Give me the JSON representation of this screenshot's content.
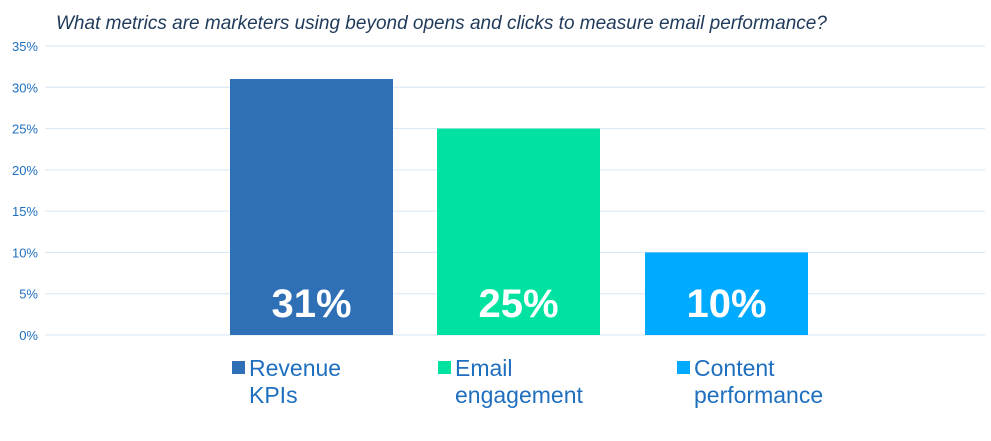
{
  "chart_data": {
    "type": "bar",
    "title": "What metrics are marketers using beyond opens and clicks to measure email performance?",
    "xlabel": "",
    "ylabel": "",
    "categories": [
      "Revenue KPIs",
      "Email engagement",
      "Content performance"
    ],
    "category_lines": [
      [
        "Revenue",
        "KPIs"
      ],
      [
        "Email",
        "engagement"
      ],
      [
        "Content",
        "performance"
      ]
    ],
    "values": [
      31,
      25,
      10
    ],
    "value_labels": [
      "31%",
      "25%",
      "10%"
    ],
    "colors": [
      "#2e6fb5",
      "#00e3a0",
      "#00aaff"
    ],
    "ylim": [
      0,
      35
    ],
    "yticks": [
      0,
      5,
      10,
      15,
      20,
      25,
      30,
      35
    ],
    "ytick_labels": [
      "0%",
      "5%",
      "10%",
      "15%",
      "20%",
      "25%",
      "30%",
      "35%"
    ],
    "grid": true,
    "legend_position": "bottom"
  }
}
